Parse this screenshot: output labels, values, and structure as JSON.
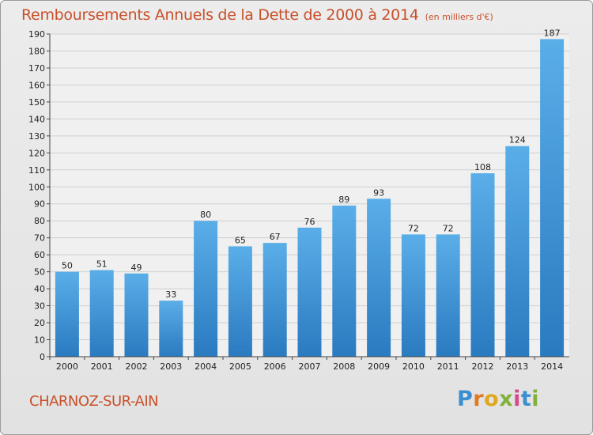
{
  "header": {
    "title": "Remboursements Annuels de la Dette de 2000 à 2014",
    "unit": "(en milliers d'€)"
  },
  "footer": {
    "commune": "CHARNOZ-SUR-AIN",
    "logo": [
      "P",
      "r",
      "o",
      "x",
      "i",
      "t",
      "i"
    ]
  },
  "colors": {
    "bar_top": "#5aaee8",
    "bar_bottom": "#2a7ac0",
    "text_accent": "#c8502a"
  },
  "chart_data": {
    "type": "bar",
    "title": "Remboursements Annuels de la Dette de 2000 à 2014",
    "categories": [
      "2000",
      "2001",
      "2002",
      "2003",
      "2004",
      "2005",
      "2006",
      "2007",
      "2008",
      "2009",
      "2010",
      "2011",
      "2012",
      "2013",
      "2014"
    ],
    "values": [
      50,
      51,
      49,
      33,
      80,
      65,
      67,
      76,
      89,
      93,
      72,
      72,
      108,
      124,
      187
    ],
    "ylim": [
      0,
      190
    ],
    "yticks": [
      0,
      10,
      20,
      30,
      40,
      50,
      60,
      70,
      80,
      90,
      100,
      110,
      120,
      130,
      140,
      150,
      160,
      170,
      180,
      190
    ],
    "grid": true
  }
}
